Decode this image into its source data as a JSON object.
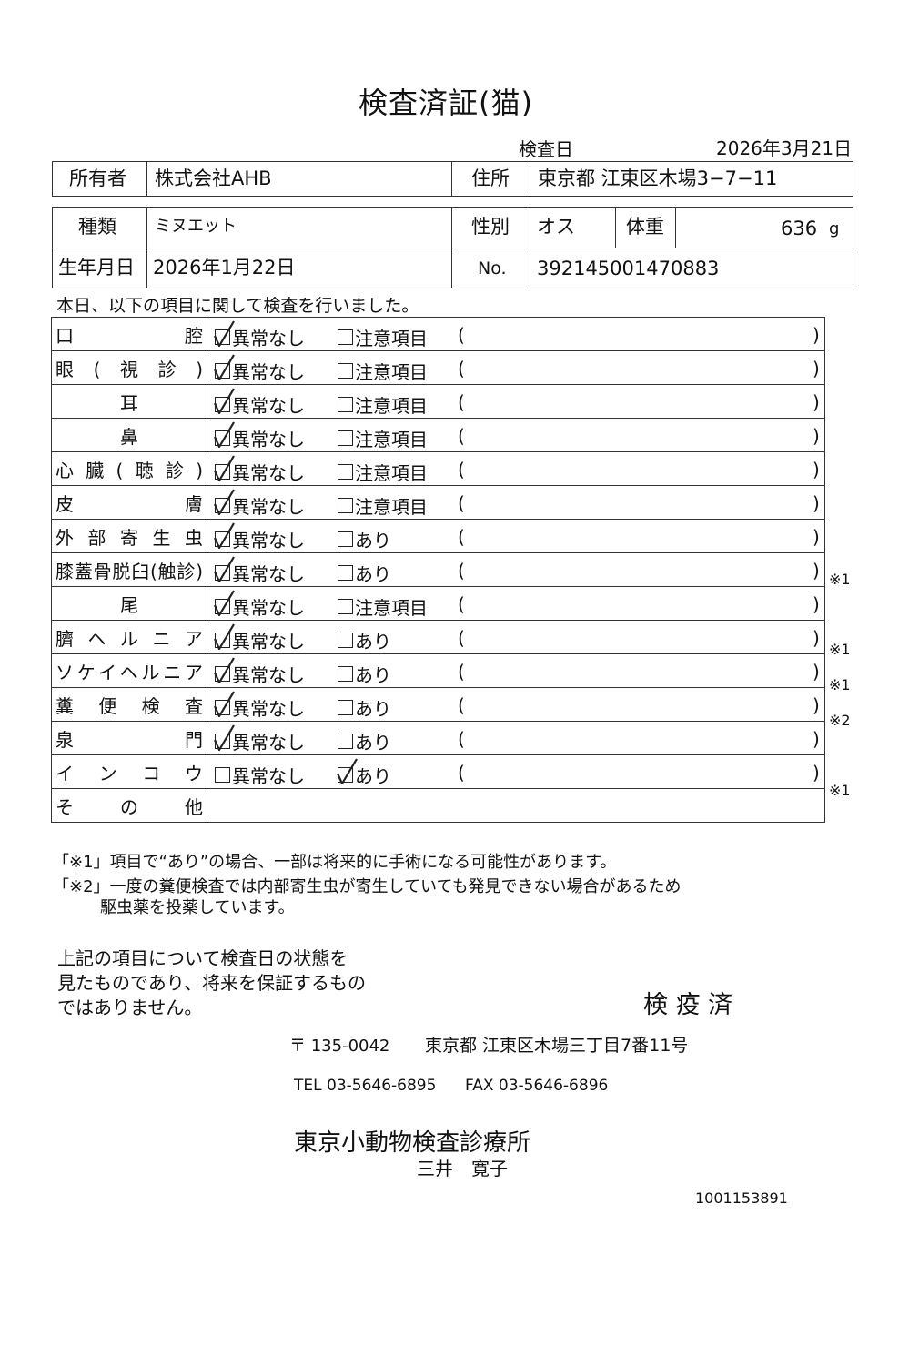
{
  "title": "検査済証(猫)",
  "exam_date": {
    "label": "検査日",
    "value": "2026年3月21日"
  },
  "owner": {
    "label": "所有者",
    "value": "株式会社AHB"
  },
  "address": {
    "label": "住所",
    "value": "東京都 江東区木場3−7−11"
  },
  "breed": {
    "label": "種類",
    "value": "ミヌエット"
  },
  "sex": {
    "label": "性別",
    "value": "オス"
  },
  "weight": {
    "label": "体重",
    "value": "636",
    "unit": "g"
  },
  "birthdate": {
    "label": "生年月日",
    "value": "2026年1月22日"
  },
  "number": {
    "label": "No.",
    "value": "392145001470883"
  },
  "intro": "本日、以下の項目に関して検査を行いました。",
  "paren_open": "(",
  "paren_close": ")",
  "items": [
    {
      "label": "口腔",
      "opt1": "異常なし",
      "opt1_checked": true,
      "opt2": "注意項目",
      "opt2_checked": false,
      "note": ""
    },
    {
      "label": "眼(視診)",
      "opt1": "異常なし",
      "opt1_checked": true,
      "opt2": "注意項目",
      "opt2_checked": false,
      "note": ""
    },
    {
      "label": "耳",
      "opt1": "異常なし",
      "opt1_checked": true,
      "opt2": "注意項目",
      "opt2_checked": false,
      "note": ""
    },
    {
      "label": "鼻",
      "opt1": "異常なし",
      "opt1_checked": true,
      "opt2": "注意項目",
      "opt2_checked": false,
      "note": ""
    },
    {
      "label": "心臓(聴診)",
      "opt1": "異常なし",
      "opt1_checked": true,
      "opt2": "注意項目",
      "opt2_checked": false,
      "note": ""
    },
    {
      "label": "皮膚",
      "opt1": "異常なし",
      "opt1_checked": true,
      "opt2": "注意項目",
      "opt2_checked": false,
      "note": ""
    },
    {
      "label": "外部寄生虫",
      "opt1": "異常なし",
      "opt1_checked": true,
      "opt2": "あり",
      "opt2_checked": false,
      "note": ""
    },
    {
      "label": "膝蓋骨脱臼(触診)",
      "opt1": "異常なし",
      "opt1_checked": true,
      "opt2": "あり",
      "opt2_checked": false,
      "note": "※1"
    },
    {
      "label": "尾",
      "opt1": "異常なし",
      "opt1_checked": true,
      "opt2": "注意項目",
      "opt2_checked": false,
      "note": ""
    },
    {
      "label": "臍ヘルニア",
      "opt1": "異常なし",
      "opt1_checked": true,
      "opt2": "あり",
      "opt2_checked": false,
      "note": "※1"
    },
    {
      "label": "ソケイヘルニア",
      "opt1": "異常なし",
      "opt1_checked": true,
      "opt2": "あり",
      "opt2_checked": false,
      "note": "※1"
    },
    {
      "label": "糞便検査",
      "opt1": "異常なし",
      "opt1_checked": true,
      "opt2": "あり",
      "opt2_checked": false,
      "note": "※2"
    },
    {
      "label": "泉門",
      "opt1": "異常なし",
      "opt1_checked": true,
      "opt2": "あり",
      "opt2_checked": false,
      "note": ""
    },
    {
      "label": "インコウ",
      "opt1": "異常なし",
      "opt1_checked": false,
      "opt2": "あり",
      "opt2_checked": true,
      "note": "※1"
    }
  ],
  "other_label": "その他",
  "footnote1": "「※1」項目で“あり”の場合、一部は将来的に手術になる可能性があります。",
  "footnote2_line1": "「※2」一度の糞便検査では内部寄生虫が寄生していても発見できない場合があるため",
  "footnote2_line2": "駆虫薬を投薬しています。",
  "disclaimer": [
    "上記の項目について検査日の状態を",
    "見たものであり、将来を保証するもの",
    "ではありません。"
  ],
  "stamp": "検 疫 済",
  "postal": "〒 135-0042",
  "clinic_address": "東京都 江東区木場三丁目7番11号",
  "tel": "TEL 03-5646-6895",
  "fax": "FAX 03-5646-6896",
  "clinic_name": "東京小動物検査診療所",
  "doctor": "三井　寛子",
  "doc_id": "1001153891"
}
